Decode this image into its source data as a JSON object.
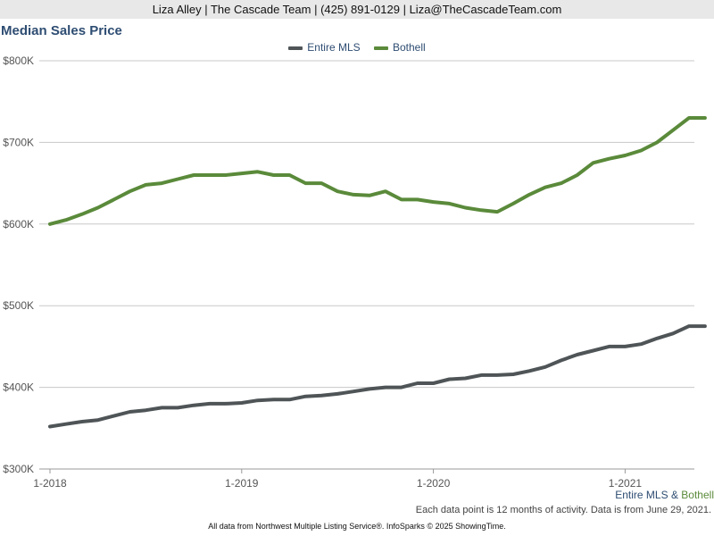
{
  "header": {
    "contact": "Liza Alley | The Cascade Team | (425) 891-0129 | Liza@TheCascadeTeam.com"
  },
  "footer": {
    "legend_mls": "Entire MLS",
    "legend_amp": "&",
    "legend_bothell": "Bothell",
    "note": "Each data point is 12 months of activity. Data is from June 29, 2021.",
    "source": "All data from Northwest Multiple Listing Service®. InfoSparks © 2025 ShowingTime."
  },
  "colors": {
    "mls": "#4f5557",
    "bothell": "#5a8a3a",
    "grid": "#c8c8c8",
    "title": "#2e4d72"
  },
  "chart_data": {
    "type": "line",
    "title": "Median Sales Price",
    "xlabel": "",
    "ylabel": "",
    "ylim": [
      300000,
      800000
    ],
    "yticks": [
      {
        "value": 300000,
        "label": "$300K"
      },
      {
        "value": 400000,
        "label": "$400K"
      },
      {
        "value": 500000,
        "label": "$500K"
      },
      {
        "value": 600000,
        "label": "$600K"
      },
      {
        "value": 700000,
        "label": "$700K"
      },
      {
        "value": 800000,
        "label": "$800K"
      }
    ],
    "xticks": [
      "1-2018",
      "1-2019",
      "1-2020",
      "1-2021"
    ],
    "x": [
      "2018-01",
      "2018-02",
      "2018-03",
      "2018-04",
      "2018-05",
      "2018-06",
      "2018-07",
      "2018-08",
      "2018-09",
      "2018-10",
      "2018-11",
      "2018-12",
      "2019-01",
      "2019-02",
      "2019-03",
      "2019-04",
      "2019-05",
      "2019-06",
      "2019-07",
      "2019-08",
      "2019-09",
      "2019-10",
      "2019-11",
      "2019-12",
      "2020-01",
      "2020-02",
      "2020-03",
      "2020-04",
      "2020-05",
      "2020-06",
      "2020-07",
      "2020-08",
      "2020-09",
      "2020-10",
      "2020-11",
      "2020-12",
      "2021-01",
      "2021-02",
      "2021-03",
      "2021-04",
      "2021-05",
      "2021-06"
    ],
    "legend_position": "top-center",
    "grid": true,
    "series": [
      {
        "name": "Entire MLS",
        "color": "#4f5557",
        "values": [
          352000,
          355000,
          358000,
          360000,
          365000,
          370000,
          372000,
          375000,
          375000,
          378000,
          380000,
          380000,
          381000,
          384000,
          385000,
          385000,
          389000,
          390000,
          392000,
          395000,
          398000,
          400000,
          400000,
          405000,
          405000,
          410000,
          411000,
          415000,
          415000,
          416000,
          420000,
          425000,
          433000,
          440000,
          445000,
          450000,
          450000,
          453000,
          460000,
          466000,
          475000,
          475000
        ]
      },
      {
        "name": "Bothell",
        "color": "#5a8a3a",
        "values": [
          600000,
          605000,
          612000,
          620000,
          630000,
          640000,
          648000,
          650000,
          655000,
          660000,
          660000,
          660000,
          662000,
          664000,
          660000,
          660000,
          650000,
          650000,
          640000,
          636000,
          635000,
          640000,
          630000,
          630000,
          627000,
          625000,
          620000,
          617000,
          615000,
          625000,
          636000,
          645000,
          650000,
          660000,
          675000,
          680000,
          684000,
          690000,
          700000,
          715000,
          730000,
          730000
        ]
      }
    ]
  }
}
